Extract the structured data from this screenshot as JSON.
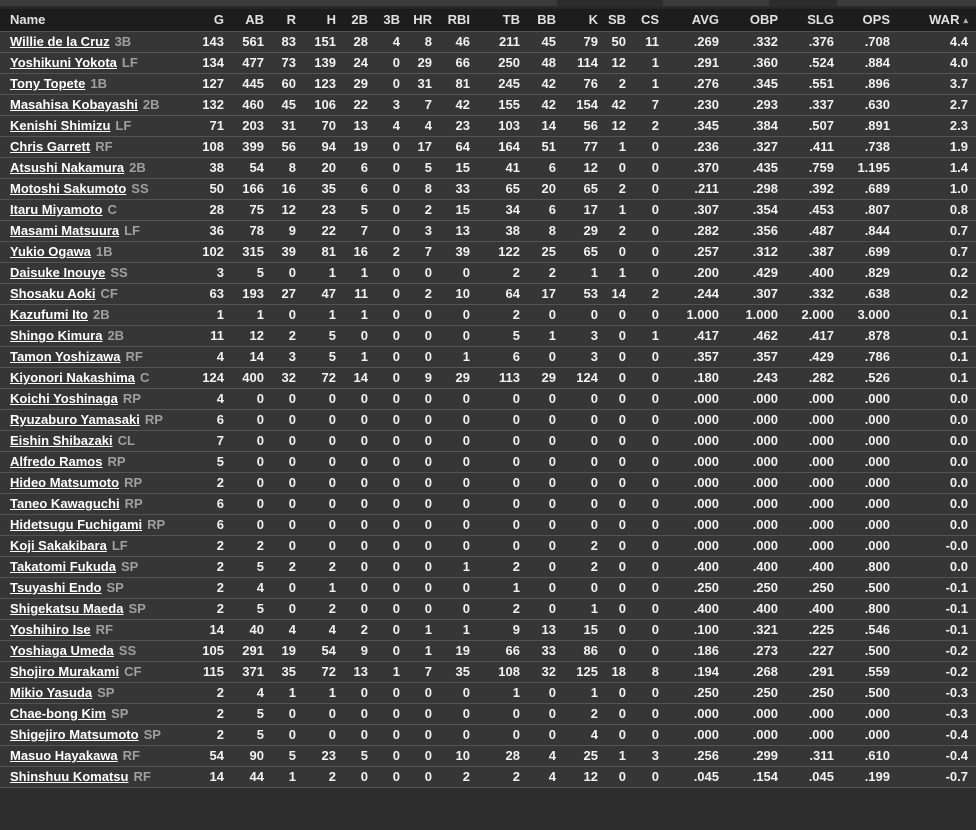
{
  "colors": {
    "background": "#2d2d2d",
    "header_bg": "#1d1d1d",
    "row_bg": "#363636",
    "row_border": "#545454",
    "link_text": "#ffffff",
    "position_text": "#9f9f9f",
    "sort_arrow": "#a8a8a8"
  },
  "sort": {
    "column": "WAR",
    "arrow_icon": "▴"
  },
  "table": {
    "columns": [
      {
        "key": "name",
        "label": "Name"
      },
      {
        "key": "g",
        "label": "G"
      },
      {
        "key": "ab",
        "label": "AB"
      },
      {
        "key": "r",
        "label": "R"
      },
      {
        "key": "h",
        "label": "H"
      },
      {
        "key": "2b",
        "label": "2B"
      },
      {
        "key": "3b",
        "label": "3B"
      },
      {
        "key": "hr",
        "label": "HR"
      },
      {
        "key": "rbi",
        "label": "RBI"
      },
      {
        "key": "tb",
        "label": "TB"
      },
      {
        "key": "bb",
        "label": "BB"
      },
      {
        "key": "k",
        "label": "K"
      },
      {
        "key": "sb",
        "label": "SB"
      },
      {
        "key": "cs",
        "label": "CS"
      },
      {
        "key": "avg",
        "label": "AVG"
      },
      {
        "key": "obp",
        "label": "OBP"
      },
      {
        "key": "slg",
        "label": "SLG"
      },
      {
        "key": "ops",
        "label": "OPS"
      },
      {
        "key": "war",
        "label": "WAR",
        "sorted": true
      }
    ],
    "rows": [
      {
        "name": "Willie de la Cruz",
        "pos": "3B",
        "stats": [
          "143",
          "561",
          "83",
          "151",
          "28",
          "4",
          "8",
          "46",
          "211",
          "45",
          "79",
          "50",
          "11",
          ".269",
          ".332",
          ".376",
          ".708",
          "4.4"
        ]
      },
      {
        "name": "Yoshikuni Yokota",
        "pos": "LF",
        "stats": [
          "134",
          "477",
          "73",
          "139",
          "24",
          "0",
          "29",
          "66",
          "250",
          "48",
          "114",
          "12",
          "1",
          ".291",
          ".360",
          ".524",
          ".884",
          "4.0"
        ]
      },
      {
        "name": "Tony Topete",
        "pos": "1B",
        "stats": [
          "127",
          "445",
          "60",
          "123",
          "29",
          "0",
          "31",
          "81",
          "245",
          "42",
          "76",
          "2",
          "1",
          ".276",
          ".345",
          ".551",
          ".896",
          "3.7"
        ]
      },
      {
        "name": "Masahisa Kobayashi",
        "pos": "2B",
        "stats": [
          "132",
          "460",
          "45",
          "106",
          "22",
          "3",
          "7",
          "42",
          "155",
          "42",
          "154",
          "42",
          "7",
          ".230",
          ".293",
          ".337",
          ".630",
          "2.7"
        ]
      },
      {
        "name": "Kenishi Shimizu",
        "pos": "LF",
        "stats": [
          "71",
          "203",
          "31",
          "70",
          "13",
          "4",
          "4",
          "23",
          "103",
          "14",
          "56",
          "12",
          "2",
          ".345",
          ".384",
          ".507",
          ".891",
          "2.3"
        ]
      },
      {
        "name": "Chris Garrett",
        "pos": "RF",
        "stats": [
          "108",
          "399",
          "56",
          "94",
          "19",
          "0",
          "17",
          "64",
          "164",
          "51",
          "77",
          "1",
          "0",
          ".236",
          ".327",
          ".411",
          ".738",
          "1.9"
        ]
      },
      {
        "name": "Atsushi Nakamura",
        "pos": "2B",
        "stats": [
          "38",
          "54",
          "8",
          "20",
          "6",
          "0",
          "5",
          "15",
          "41",
          "6",
          "12",
          "0",
          "0",
          ".370",
          ".435",
          ".759",
          "1.195",
          "1.4"
        ]
      },
      {
        "name": "Motoshi Sakumoto",
        "pos": "SS",
        "stats": [
          "50",
          "166",
          "16",
          "35",
          "6",
          "0",
          "8",
          "33",
          "65",
          "20",
          "65",
          "2",
          "0",
          ".211",
          ".298",
          ".392",
          ".689",
          "1.0"
        ]
      },
      {
        "name": "Itaru Miyamoto",
        "pos": "C",
        "stats": [
          "28",
          "75",
          "12",
          "23",
          "5",
          "0",
          "2",
          "15",
          "34",
          "6",
          "17",
          "1",
          "0",
          ".307",
          ".354",
          ".453",
          ".807",
          "0.8"
        ]
      },
      {
        "name": "Masami Matsuura",
        "pos": "LF",
        "stats": [
          "36",
          "78",
          "9",
          "22",
          "7",
          "0",
          "3",
          "13",
          "38",
          "8",
          "29",
          "2",
          "0",
          ".282",
          ".356",
          ".487",
          ".844",
          "0.7"
        ]
      },
      {
        "name": "Yukio Ogawa",
        "pos": "1B",
        "stats": [
          "102",
          "315",
          "39",
          "81",
          "16",
          "2",
          "7",
          "39",
          "122",
          "25",
          "65",
          "0",
          "0",
          ".257",
          ".312",
          ".387",
          ".699",
          "0.7"
        ]
      },
      {
        "name": "Daisuke Inouye",
        "pos": "SS",
        "stats": [
          "3",
          "5",
          "0",
          "1",
          "1",
          "0",
          "0",
          "0",
          "2",
          "2",
          "1",
          "1",
          "0",
          ".200",
          ".429",
          ".400",
          ".829",
          "0.2"
        ]
      },
      {
        "name": "Shosaku Aoki",
        "pos": "CF",
        "stats": [
          "63",
          "193",
          "27",
          "47",
          "11",
          "0",
          "2",
          "10",
          "64",
          "17",
          "53",
          "14",
          "2",
          ".244",
          ".307",
          ".332",
          ".638",
          "0.2"
        ]
      },
      {
        "name": "Kazufumi Ito",
        "pos": "2B",
        "stats": [
          "1",
          "1",
          "0",
          "1",
          "1",
          "0",
          "0",
          "0",
          "2",
          "0",
          "0",
          "0",
          "0",
          "1.000",
          "1.000",
          "2.000",
          "3.000",
          "0.1"
        ]
      },
      {
        "name": "Shingo Kimura",
        "pos": "2B",
        "stats": [
          "11",
          "12",
          "2",
          "5",
          "0",
          "0",
          "0",
          "0",
          "5",
          "1",
          "3",
          "0",
          "1",
          ".417",
          ".462",
          ".417",
          ".878",
          "0.1"
        ]
      },
      {
        "name": "Tamon Yoshizawa",
        "pos": "RF",
        "stats": [
          "4",
          "14",
          "3",
          "5",
          "1",
          "0",
          "0",
          "1",
          "6",
          "0",
          "3",
          "0",
          "0",
          ".357",
          ".357",
          ".429",
          ".786",
          "0.1"
        ]
      },
      {
        "name": "Kiyonori Nakashima",
        "pos": "C",
        "stats": [
          "124",
          "400",
          "32",
          "72",
          "14",
          "0",
          "9",
          "29",
          "113",
          "29",
          "124",
          "0",
          "0",
          ".180",
          ".243",
          ".282",
          ".526",
          "0.1"
        ]
      },
      {
        "name": "Koichi Yoshinaga",
        "pos": "RP",
        "stats": [
          "4",
          "0",
          "0",
          "0",
          "0",
          "0",
          "0",
          "0",
          "0",
          "0",
          "0",
          "0",
          "0",
          ".000",
          ".000",
          ".000",
          ".000",
          "0.0"
        ]
      },
      {
        "name": "Ryuzaburo Yamasaki",
        "pos": "RP",
        "stats": [
          "6",
          "0",
          "0",
          "0",
          "0",
          "0",
          "0",
          "0",
          "0",
          "0",
          "0",
          "0",
          "0",
          ".000",
          ".000",
          ".000",
          ".000",
          "0.0"
        ]
      },
      {
        "name": "Eishin Shibazaki",
        "pos": "CL",
        "stats": [
          "7",
          "0",
          "0",
          "0",
          "0",
          "0",
          "0",
          "0",
          "0",
          "0",
          "0",
          "0",
          "0",
          ".000",
          ".000",
          ".000",
          ".000",
          "0.0"
        ]
      },
      {
        "name": "Alfredo Ramos",
        "pos": "RP",
        "stats": [
          "5",
          "0",
          "0",
          "0",
          "0",
          "0",
          "0",
          "0",
          "0",
          "0",
          "0",
          "0",
          "0",
          ".000",
          ".000",
          ".000",
          ".000",
          "0.0"
        ]
      },
      {
        "name": "Hideo Matsumoto",
        "pos": "RP",
        "stats": [
          "2",
          "0",
          "0",
          "0",
          "0",
          "0",
          "0",
          "0",
          "0",
          "0",
          "0",
          "0",
          "0",
          ".000",
          ".000",
          ".000",
          ".000",
          "0.0"
        ]
      },
      {
        "name": "Taneo Kawaguchi",
        "pos": "RP",
        "stats": [
          "6",
          "0",
          "0",
          "0",
          "0",
          "0",
          "0",
          "0",
          "0",
          "0",
          "0",
          "0",
          "0",
          ".000",
          ".000",
          ".000",
          ".000",
          "0.0"
        ]
      },
      {
        "name": "Hidetsugu Fuchigami",
        "pos": "RP",
        "stats": [
          "6",
          "0",
          "0",
          "0",
          "0",
          "0",
          "0",
          "0",
          "0",
          "0",
          "0",
          "0",
          "0",
          ".000",
          ".000",
          ".000",
          ".000",
          "0.0"
        ]
      },
      {
        "name": "Koji Sakakibara",
        "pos": "LF",
        "stats": [
          "2",
          "2",
          "0",
          "0",
          "0",
          "0",
          "0",
          "0",
          "0",
          "0",
          "2",
          "0",
          "0",
          ".000",
          ".000",
          ".000",
          ".000",
          "-0.0"
        ]
      },
      {
        "name": "Takatomi Fukuda",
        "pos": "SP",
        "stats": [
          "2",
          "5",
          "2",
          "2",
          "0",
          "0",
          "0",
          "1",
          "2",
          "0",
          "2",
          "0",
          "0",
          ".400",
          ".400",
          ".400",
          ".800",
          "0.0"
        ]
      },
      {
        "name": "Tsuyashi Endo",
        "pos": "SP",
        "stats": [
          "2",
          "4",
          "0",
          "1",
          "0",
          "0",
          "0",
          "0",
          "1",
          "0",
          "0",
          "0",
          "0",
          ".250",
          ".250",
          ".250",
          ".500",
          "-0.1"
        ]
      },
      {
        "name": "Shigekatsu Maeda",
        "pos": "SP",
        "stats": [
          "2",
          "5",
          "0",
          "2",
          "0",
          "0",
          "0",
          "0",
          "2",
          "0",
          "1",
          "0",
          "0",
          ".400",
          ".400",
          ".400",
          ".800",
          "-0.1"
        ]
      },
      {
        "name": "Yoshihiro Ise",
        "pos": "RF",
        "stats": [
          "14",
          "40",
          "4",
          "4",
          "2",
          "0",
          "1",
          "1",
          "9",
          "13",
          "15",
          "0",
          "0",
          ".100",
          ".321",
          ".225",
          ".546",
          "-0.1"
        ]
      },
      {
        "name": "Yoshiaga Umeda",
        "pos": "SS",
        "stats": [
          "105",
          "291",
          "19",
          "54",
          "9",
          "0",
          "1",
          "19",
          "66",
          "33",
          "86",
          "0",
          "0",
          ".186",
          ".273",
          ".227",
          ".500",
          "-0.2"
        ]
      },
      {
        "name": "Shojiro Murakami",
        "pos": "CF",
        "stats": [
          "115",
          "371",
          "35",
          "72",
          "13",
          "1",
          "7",
          "35",
          "108",
          "32",
          "125",
          "18",
          "8",
          ".194",
          ".268",
          ".291",
          ".559",
          "-0.2"
        ]
      },
      {
        "name": "Mikio Yasuda",
        "pos": "SP",
        "stats": [
          "2",
          "4",
          "1",
          "1",
          "0",
          "0",
          "0",
          "0",
          "1",
          "0",
          "1",
          "0",
          "0",
          ".250",
          ".250",
          ".250",
          ".500",
          "-0.3"
        ]
      },
      {
        "name": "Chae-bong Kim",
        "pos": "SP",
        "stats": [
          "2",
          "5",
          "0",
          "0",
          "0",
          "0",
          "0",
          "0",
          "0",
          "0",
          "2",
          "0",
          "0",
          ".000",
          ".000",
          ".000",
          ".000",
          "-0.3"
        ]
      },
      {
        "name": "Shigejiro Matsumoto",
        "pos": "SP",
        "stats": [
          "2",
          "5",
          "0",
          "0",
          "0",
          "0",
          "0",
          "0",
          "0",
          "0",
          "4",
          "0",
          "0",
          ".000",
          ".000",
          ".000",
          ".000",
          "-0.4"
        ]
      },
      {
        "name": "Masuo Hayakawa",
        "pos": "RF",
        "stats": [
          "54",
          "90",
          "5",
          "23",
          "5",
          "0",
          "0",
          "10",
          "28",
          "4",
          "25",
          "1",
          "3",
          ".256",
          ".299",
          ".311",
          ".610",
          "-0.4"
        ]
      },
      {
        "name": "Shinshuu Komatsu",
        "pos": "RF",
        "stats": [
          "14",
          "44",
          "1",
          "2",
          "0",
          "0",
          "0",
          "2",
          "2",
          "4",
          "12",
          "0",
          "0",
          ".045",
          ".154",
          ".045",
          ".199",
          "-0.7"
        ]
      }
    ]
  }
}
